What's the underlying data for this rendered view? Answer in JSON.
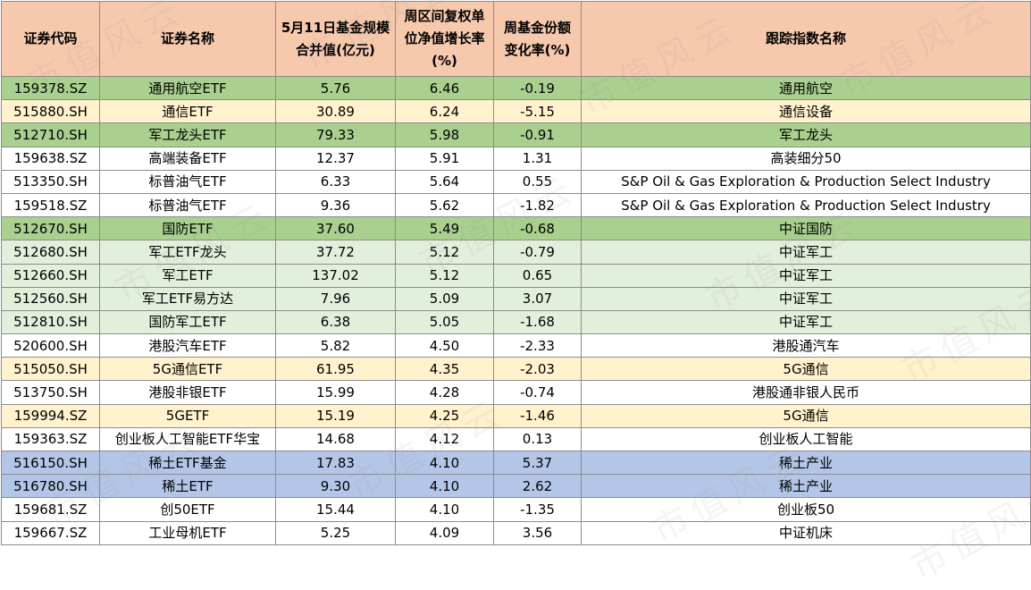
{
  "headers": [
    "证券代码",
    "证券名称",
    "5月11日基金规模合并值(亿元)",
    "周区间复权单位净值增长率(%)",
    "周基金份额变化率(%)",
    "跟踪指数名称"
  ],
  "row_colors": {
    "green": "#a9d08e",
    "lightgreen": "#e2efda",
    "yellow": "#fff2cc",
    "blue": "#b4c6e7",
    "white": "#ffffff",
    "header": "#f6c9ad"
  },
  "watermark": "市值风云",
  "rows": [
    {
      "code": "159378.SZ",
      "name": "通用航空ETF",
      "scale": "5.76",
      "growth": "6.46",
      "share_change": "-0.19",
      "index": "通用航空",
      "color": "green"
    },
    {
      "code": "515880.SH",
      "name": "通信ETF",
      "scale": "30.89",
      "growth": "6.24",
      "share_change": "-5.15",
      "index": "通信设备",
      "color": "yellow"
    },
    {
      "code": "512710.SH",
      "name": "军工龙头ETF",
      "scale": "79.33",
      "growth": "5.98",
      "share_change": "-0.91",
      "index": "军工龙头",
      "color": "green"
    },
    {
      "code": "159638.SZ",
      "name": "高端装备ETF",
      "scale": "12.37",
      "growth": "5.91",
      "share_change": "1.31",
      "index": "高装细分50",
      "color": "white"
    },
    {
      "code": "513350.SH",
      "name": "标普油气ETF",
      "scale": "6.33",
      "growth": "5.64",
      "share_change": "0.55",
      "index": "S&P Oil & Gas Exploration & Production Select Industry",
      "color": "white"
    },
    {
      "code": "159518.SZ",
      "name": "标普油气ETF",
      "scale": "9.36",
      "growth": "5.62",
      "share_change": "-1.82",
      "index": "S&P Oil & Gas Exploration & Production Select Industry",
      "color": "white"
    },
    {
      "code": "512670.SH",
      "name": "国防ETF",
      "scale": "37.60",
      "growth": "5.49",
      "share_change": "-0.68",
      "index": "中证国防",
      "color": "green"
    },
    {
      "code": "512680.SH",
      "name": "军工ETF龙头",
      "scale": "37.72",
      "growth": "5.12",
      "share_change": "-0.79",
      "index": "中证军工",
      "color": "lightgreen"
    },
    {
      "code": "512660.SH",
      "name": "军工ETF",
      "scale": "137.02",
      "growth": "5.12",
      "share_change": "0.65",
      "index": "中证军工",
      "color": "lightgreen"
    },
    {
      "code": "512560.SH",
      "name": "军工ETF易方达",
      "scale": "7.96",
      "growth": "5.09",
      "share_change": "3.07",
      "index": "中证军工",
      "color": "lightgreen"
    },
    {
      "code": "512810.SH",
      "name": "国防军工ETF",
      "scale": "6.38",
      "growth": "5.05",
      "share_change": "-1.68",
      "index": "中证军工",
      "color": "lightgreen"
    },
    {
      "code": "520600.SH",
      "name": "港股汽车ETF",
      "scale": "5.82",
      "growth": "4.50",
      "share_change": "-2.33",
      "index": "港股通汽车",
      "color": "white"
    },
    {
      "code": "515050.SH",
      "name": "5G通信ETF",
      "scale": "61.95",
      "growth": "4.35",
      "share_change": "-2.03",
      "index": "5G通信",
      "color": "yellow"
    },
    {
      "code": "513750.SH",
      "name": "港股非银ETF",
      "scale": "15.99",
      "growth": "4.28",
      "share_change": "-0.74",
      "index": "港股通非银人民币",
      "color": "white"
    },
    {
      "code": "159994.SZ",
      "name": "5GETF",
      "scale": "15.19",
      "growth": "4.25",
      "share_change": "-1.46",
      "index": "5G通信",
      "color": "yellow"
    },
    {
      "code": "159363.SZ",
      "name": "创业板人工智能ETF华宝",
      "scale": "14.68",
      "growth": "4.12",
      "share_change": "0.13",
      "index": "创业板人工智能",
      "color": "white"
    },
    {
      "code": "516150.SH",
      "name": "稀土ETF基金",
      "scale": "17.83",
      "growth": "4.10",
      "share_change": "5.37",
      "index": "稀土产业",
      "color": "blue"
    },
    {
      "code": "516780.SH",
      "name": "稀土ETF",
      "scale": "9.30",
      "growth": "4.10",
      "share_change": "2.62",
      "index": "稀土产业",
      "color": "blue"
    },
    {
      "code": "159681.SZ",
      "name": "创50ETF",
      "scale": "15.44",
      "growth": "4.10",
      "share_change": "-1.35",
      "index": "创业板50",
      "color": "white"
    },
    {
      "code": "159667.SZ",
      "name": "工业母机ETF",
      "scale": "5.25",
      "growth": "4.09",
      "share_change": "3.56",
      "index": "中证机床",
      "color": "white"
    }
  ]
}
